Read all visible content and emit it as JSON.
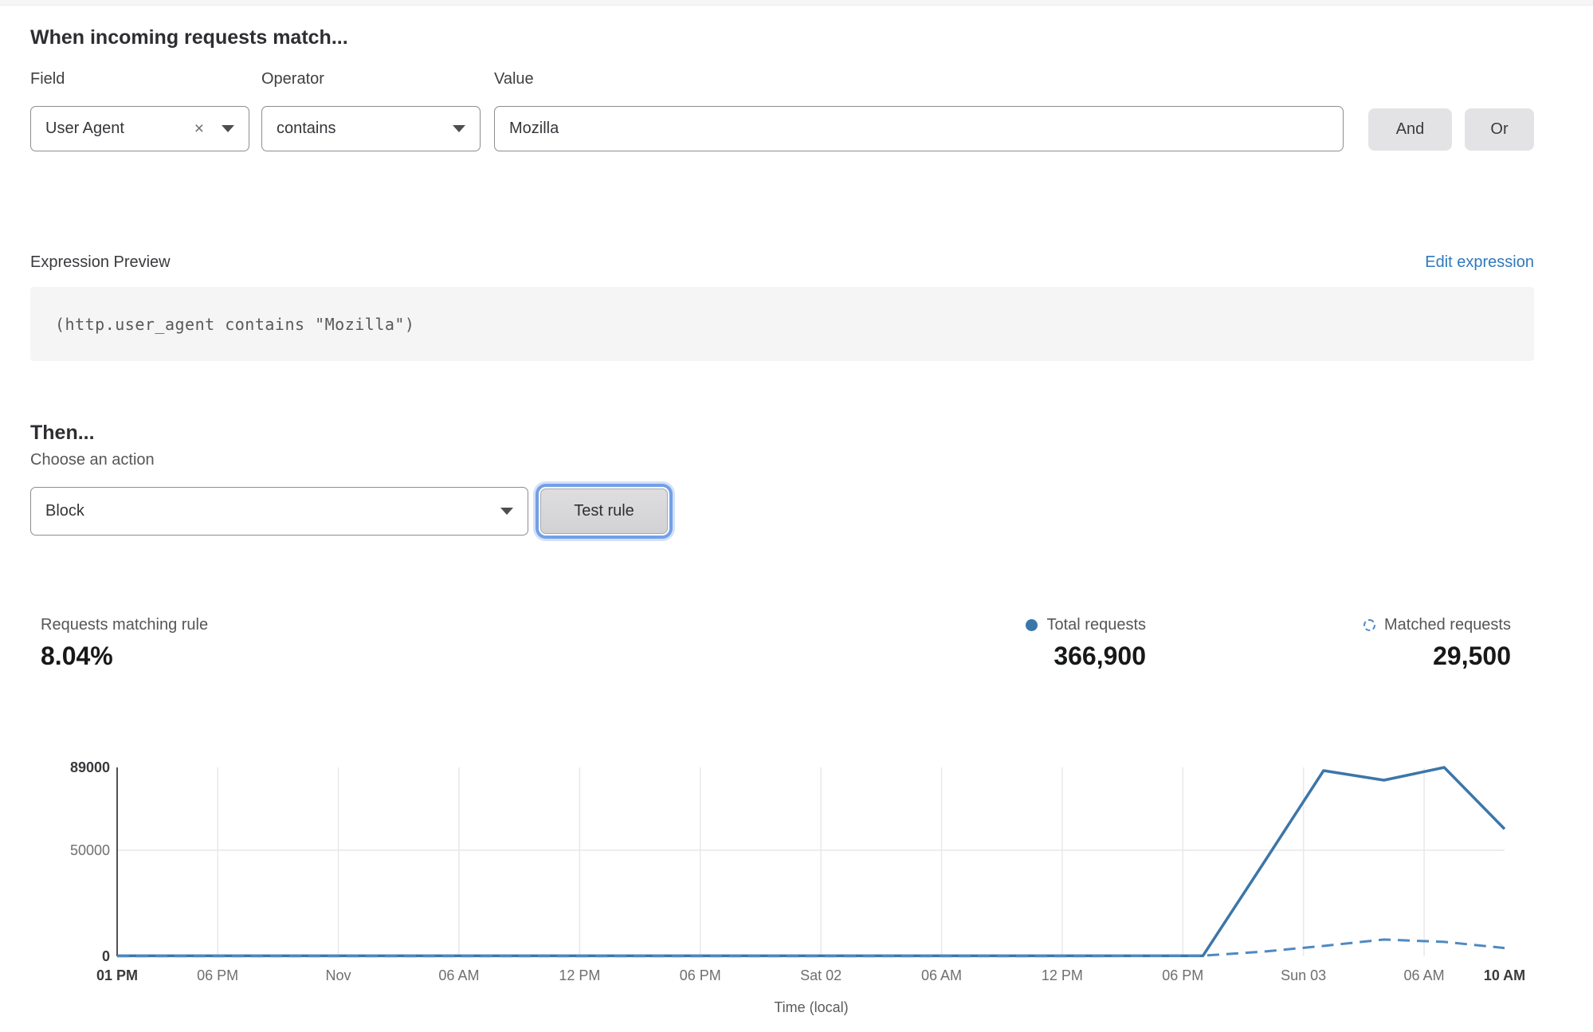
{
  "rule_builder": {
    "title": "When incoming requests match...",
    "field": {
      "label": "Field",
      "value": "User Agent",
      "clear_icon": "×"
    },
    "operator": {
      "label": "Operator",
      "value": "contains"
    },
    "value": {
      "label": "Value",
      "value": "Mozilla"
    },
    "and_label": "And",
    "or_label": "Or"
  },
  "expression": {
    "label": "Expression Preview",
    "edit_link": "Edit expression",
    "code": "(http.user_agent contains \"Mozilla\")"
  },
  "action": {
    "heading": "Then...",
    "choose_label": "Choose an action",
    "selected": "Block",
    "test_button": "Test rule"
  },
  "stats": {
    "matching": {
      "label": "Requests matching rule",
      "value": "8.04%"
    },
    "total": {
      "label": "Total requests",
      "value": "366,900"
    },
    "matched": {
      "label": "Matched requests",
      "value": "29,500"
    }
  },
  "colors": {
    "link_blue": "#3078bd",
    "line_solid": "#3c76a9",
    "line_dashed": "#4f89c2",
    "grid": "#e8e8ea",
    "axis": "#515155",
    "focus_ring": "#6898e4"
  },
  "chart_data": {
    "type": "line",
    "xlabel": "Time (local)",
    "ylabel": "",
    "ylim": [
      0,
      89000
    ],
    "x_hours_total": 69,
    "grid": "vertical ticks + horizontal at 50000",
    "legend_position": "top-right above chart",
    "yticks": [
      {
        "label": "89000",
        "value": 89000,
        "bold": true
      },
      {
        "label": "50000",
        "value": 50000,
        "bold": false
      },
      {
        "label": "0",
        "value": 0,
        "bold": true
      }
    ],
    "xticks": [
      {
        "label": "01 PM",
        "h": 0,
        "bold": true,
        "grid": false
      },
      {
        "label": "06 PM",
        "h": 5,
        "bold": false,
        "grid": true
      },
      {
        "label": "Nov",
        "h": 11,
        "bold": false,
        "grid": true
      },
      {
        "label": "06 AM",
        "h": 17,
        "bold": false,
        "grid": true
      },
      {
        "label": "12 PM",
        "h": 23,
        "bold": false,
        "grid": true
      },
      {
        "label": "06 PM",
        "h": 29,
        "bold": false,
        "grid": true
      },
      {
        "label": "Sat 02",
        "h": 35,
        "bold": false,
        "grid": true
      },
      {
        "label": "06 AM",
        "h": 41,
        "bold": false,
        "grid": true
      },
      {
        "label": "12 PM",
        "h": 47,
        "bold": false,
        "grid": true
      },
      {
        "label": "06 PM",
        "h": 53,
        "bold": false,
        "grid": true
      },
      {
        "label": "Sun 03",
        "h": 59,
        "bold": false,
        "grid": true
      },
      {
        "label": "06 AM",
        "h": 65,
        "bold": false,
        "grid": true
      },
      {
        "label": "10 AM",
        "h": 69,
        "bold": true,
        "grid": false
      }
    ],
    "series": [
      {
        "name": "Total requests",
        "style": "solid",
        "color": "#3c76a9",
        "points": [
          [
            0,
            250
          ],
          [
            6,
            250
          ],
          [
            12,
            250
          ],
          [
            18,
            250
          ],
          [
            24,
            250
          ],
          [
            30,
            250
          ],
          [
            36,
            250
          ],
          [
            42,
            250
          ],
          [
            48,
            250
          ],
          [
            54,
            250
          ],
          [
            57,
            43700
          ],
          [
            60,
            87500
          ],
          [
            63,
            83000
          ],
          [
            66,
            89000
          ],
          [
            69,
            60000
          ]
        ]
      },
      {
        "name": "Matched requests",
        "style": "dashed",
        "color": "#4f89c2",
        "points": [
          [
            0,
            100
          ],
          [
            6,
            100
          ],
          [
            12,
            100
          ],
          [
            18,
            100
          ],
          [
            24,
            100
          ],
          [
            30,
            100
          ],
          [
            36,
            100
          ],
          [
            42,
            100
          ],
          [
            48,
            100
          ],
          [
            54,
            300
          ],
          [
            57,
            2200
          ],
          [
            60,
            4900
          ],
          [
            63,
            7900
          ],
          [
            66,
            6800
          ],
          [
            69,
            3900
          ]
        ]
      }
    ]
  }
}
